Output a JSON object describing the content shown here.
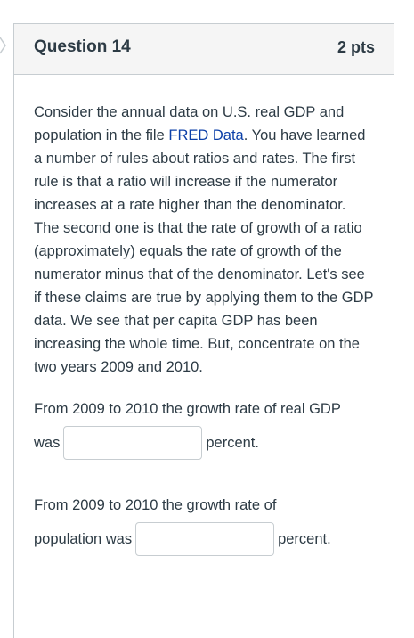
{
  "question": {
    "title": "Question 14",
    "points": "2 pts",
    "text_before_link": "Consider the annual data on U.S. real GDP and population in the file ",
    "link_text": "FRED Data",
    "text_after_link": ". You have learned a number of rules about ratios and rates. The first rule is that a ratio will increase if the numerator increases at a rate higher than the denominator. The second one is that the rate of growth of a ratio (approximately) equals the rate of growth of the numerator minus that of the denominator. Let's see if these claims are true by applying them to the GDP data. We see that per capita GDP has been increasing the whole time. But, concentrate on the two years 2009 and 2010."
  },
  "answers": [
    {
      "prompt": "From 2009 to 2010 the growth rate of real GDP",
      "before_input": "was",
      "value": "",
      "after_input": "percent."
    },
    {
      "prompt": "From 2009 to 2010 the growth rate of",
      "before_input": "population was",
      "value": "",
      "after_input": "percent."
    }
  ],
  "icons": {
    "nav": "chevron-left-icon"
  }
}
